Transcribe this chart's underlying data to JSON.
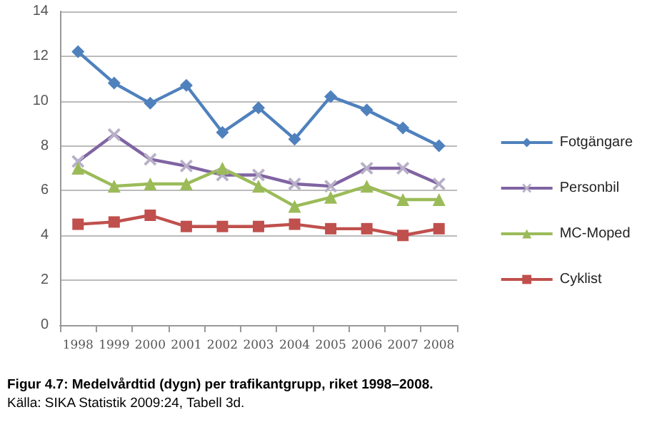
{
  "chart_data": {
    "type": "line",
    "title": "Figur 4.7: Medelvårdtid (dygn) per trafikantgrupp, riket 1998–2008.",
    "subtitle": "Källa: SIKA Statistik 2009:24, Tabell 3d.",
    "categories": [
      "1998",
      "1999",
      "2000",
      "2001",
      "2002",
      "2003",
      "2004",
      "2005",
      "2006",
      "2007",
      "2008"
    ],
    "series": [
      {
        "name": "Fotgängare",
        "color": "#4f81bd",
        "marker": "diamond",
        "values": [
          12.2,
          10.8,
          9.9,
          10.7,
          8.6,
          9.7,
          8.3,
          10.2,
          9.6,
          8.8,
          8.0
        ]
      },
      {
        "name": "Personbil",
        "color": "#8064a2",
        "marker": "cross",
        "values": [
          7.3,
          8.5,
          7.4,
          7.1,
          6.7,
          6.7,
          6.3,
          6.2,
          7.0,
          7.0,
          6.3
        ]
      },
      {
        "name": "MC-Moped",
        "color": "#9bbb59",
        "marker": "triangle",
        "values": [
          7.0,
          6.2,
          6.3,
          6.3,
          7.0,
          6.2,
          5.3,
          5.7,
          6.2,
          5.6,
          5.6
        ]
      },
      {
        "name": "Cyklist",
        "color": "#c0504d",
        "marker": "square",
        "values": [
          4.5,
          4.6,
          4.9,
          4.4,
          4.4,
          4.4,
          4.5,
          4.3,
          4.3,
          4.0,
          4.3
        ]
      }
    ],
    "ylim": [
      0,
      14
    ],
    "yticks": [
      0,
      2,
      4,
      6,
      8,
      10,
      12,
      14
    ],
    "grid": "y",
    "legend": "right"
  }
}
